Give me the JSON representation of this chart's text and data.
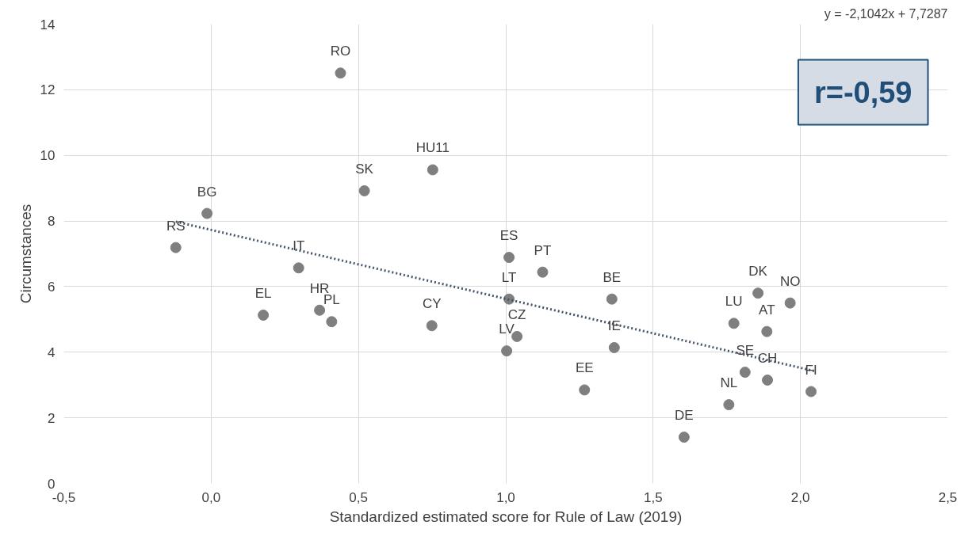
{
  "chart_data": {
    "type": "scatter",
    "xlabel": "Standardized estimated score for Rule of Law (2019)",
    "ylabel": "Circumstances",
    "xlim": [
      -0.5,
      2.5
    ],
    "ylim": [
      0,
      14
    ],
    "xticks": [
      {
        "value": -0.5,
        "label": "-0,5"
      },
      {
        "value": 0,
        "label": "0,0"
      },
      {
        "value": 0.5,
        "label": "0,5"
      },
      {
        "value": 1,
        "label": "1,0"
      },
      {
        "value": 1.5,
        "label": "1,5"
      },
      {
        "value": 2,
        "label": "2,0"
      },
      {
        "value": 2.5,
        "label": "2,5"
      }
    ],
    "yticks": [
      0,
      2,
      4,
      6,
      8,
      10,
      12,
      14
    ],
    "grid": true,
    "marker": "circle",
    "series": [
      {
        "color": "#7f7f7f",
        "x": [
          -0.12,
          -0.014,
          0.177,
          0.297,
          0.368,
          0.409,
          0.439,
          0.52,
          0.749,
          0.752,
          1.003,
          1.011,
          1.011,
          1.038,
          1.125,
          1.267,
          1.36,
          1.368,
          1.605,
          1.757,
          1.774,
          1.812,
          1.856,
          1.886,
          1.888,
          1.965,
          2.036
        ],
        "values": [
          7.19,
          8.23,
          5.13,
          6.57,
          5.28,
          4.93,
          12.51,
          8.92,
          4.81,
          9.56,
          4.04,
          6.89,
          5.62,
          4.48,
          6.44,
          2.85,
          5.62,
          4.14,
          1.41,
          2.4,
          4.88,
          3.39,
          5.8,
          4.63,
          3.15,
          5.5,
          2.8
        ]
      },
      {
        "type": "line",
        "marker": "none",
        "line_style": "dotted",
        "color": "#44546a",
        "x": [
          -0.12,
          2.05
        ],
        "values": [
          7.98,
          3.42
        ]
      }
    ],
    "annotations": [
      "y = -2,1042x + 7,7287",
      "r=-0,59",
      {
        "text": "RS",
        "x": -0.12,
        "y": 7.19
      },
      {
        "text": "BG",
        "x": -0.014,
        "y": 8.23
      },
      {
        "text": "EL",
        "x": 0.177,
        "y": 5.13
      },
      {
        "text": "IT",
        "x": 0.297,
        "y": 6.57
      },
      {
        "text": "HR",
        "x": 0.368,
        "y": 5.28
      },
      {
        "text": "PL",
        "x": 0.409,
        "y": 4.93
      },
      {
        "text": "RO",
        "x": 0.439,
        "y": 12.51
      },
      {
        "text": "SK",
        "x": 0.52,
        "y": 8.92
      },
      {
        "text": "CY",
        "x": 0.749,
        "y": 4.81
      },
      {
        "text": "HU11",
        "x": 0.752,
        "y": 9.56
      },
      {
        "text": "LV",
        "x": 1.003,
        "y": 4.04
      },
      {
        "text": "ES",
        "x": 1.011,
        "y": 6.89
      },
      {
        "text": "LT",
        "x": 1.011,
        "y": 5.62
      },
      {
        "text": "CZ",
        "x": 1.038,
        "y": 4.48
      },
      {
        "text": "PT",
        "x": 1.125,
        "y": 6.44
      },
      {
        "text": "EE",
        "x": 1.267,
        "y": 2.85
      },
      {
        "text": "BE",
        "x": 1.36,
        "y": 5.62
      },
      {
        "text": "IE",
        "x": 1.368,
        "y": 4.14
      },
      {
        "text": "DE",
        "x": 1.605,
        "y": 1.41
      },
      {
        "text": "NL",
        "x": 1.757,
        "y": 2.4
      },
      {
        "text": "LU",
        "x": 1.774,
        "y": 4.88
      },
      {
        "text": "SE",
        "x": 1.812,
        "y": 3.39
      },
      {
        "text": "DK",
        "x": 1.856,
        "y": 5.8
      },
      {
        "text": "AT",
        "x": 1.886,
        "y": 4.63
      },
      {
        "text": "CH",
        "x": 1.888,
        "y": 3.15
      },
      {
        "text": "NO",
        "x": 1.965,
        "y": 5.5
      },
      {
        "text": "FI",
        "x": 2.036,
        "y": 2.8
      }
    ]
  }
}
